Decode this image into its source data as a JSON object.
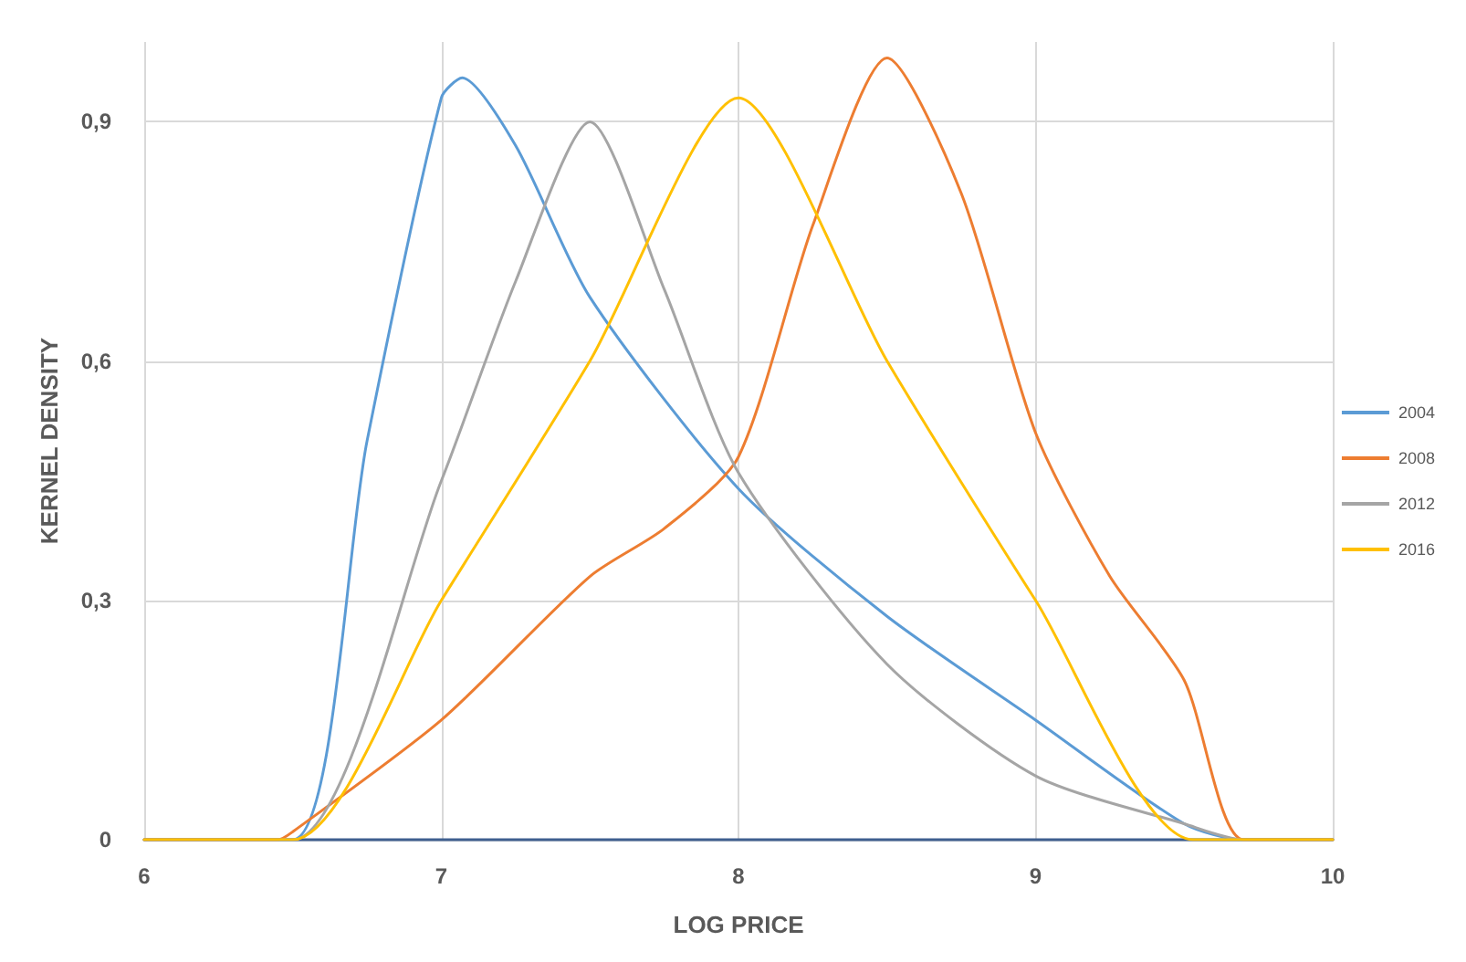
{
  "chart_data": {
    "type": "line",
    "xlabel": "LOG PRICE",
    "ylabel": "KERNEL DENSITY",
    "xlim": [
      6,
      10
    ],
    "xticks": [
      6,
      7,
      8,
      9,
      10
    ],
    "ylim": [
      0,
      1
    ],
    "yticks": [
      {
        "value": 0,
        "label": "0"
      },
      {
        "value": 0.3,
        "label": "0,3"
      },
      {
        "value": 0.6,
        "label": "0,6"
      },
      {
        "value": 0.9,
        "label": "0,9"
      }
    ],
    "grid": true,
    "legend": "right",
    "marker": "none",
    "line_style": "solid",
    "series": [
      {
        "name": "2004",
        "color": "#5b9bd5",
        "x": [
          6,
          6.5,
          6.75,
          7,
          7.07,
          7.25,
          7.5,
          8,
          8.5,
          9,
          9.5,
          9.7,
          10
        ],
        "values": [
          0,
          0,
          0.5,
          0.93,
          0.955,
          0.87,
          0.68,
          0.44,
          0.28,
          0.15,
          0.02,
          0,
          0
        ]
      },
      {
        "name": "2008",
        "color": "#ed7d31",
        "x": [
          6,
          6.45,
          6.5,
          7,
          7.5,
          7.75,
          8,
          8.25,
          8.5,
          8.75,
          9,
          9.25,
          9.5,
          9.7,
          10
        ],
        "values": [
          0,
          0,
          0.01,
          0.15,
          0.33,
          0.39,
          0.48,
          0.77,
          0.98,
          0.81,
          0.51,
          0.33,
          0.2,
          0,
          0
        ]
      },
      {
        "name": "2012",
        "color": "#a5a5a5",
        "x": [
          6,
          6.5,
          7,
          7.25,
          7.5,
          7.75,
          8,
          8.5,
          9,
          9.5,
          9.7,
          10
        ],
        "values": [
          0,
          0,
          0.45,
          0.7,
          0.9,
          0.69,
          0.46,
          0.22,
          0.08,
          0.02,
          0,
          0
        ]
      },
      {
        "name": "2016",
        "color": "#ffc000",
        "x": [
          6,
          6.5,
          7,
          7.5,
          8,
          8.5,
          9,
          9.53,
          10
        ],
        "values": [
          0,
          0,
          0.3,
          0.6,
          0.93,
          0.6,
          0.3,
          0,
          0
        ]
      }
    ]
  }
}
